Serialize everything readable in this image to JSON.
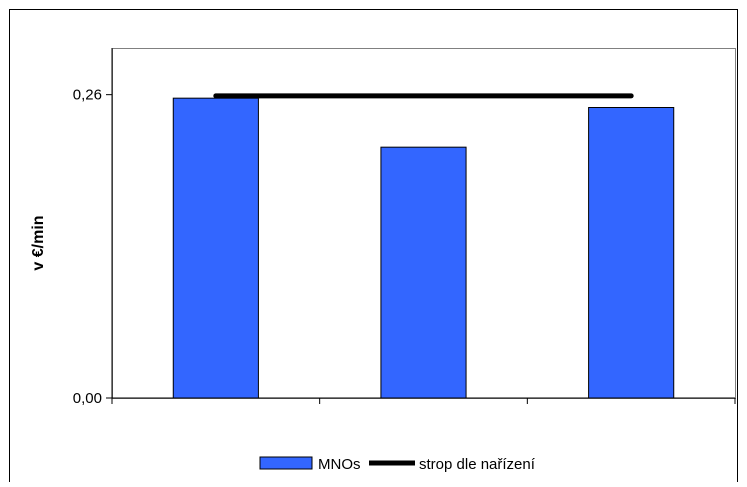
{
  "chart_data": {
    "type": "bar",
    "title": "",
    "xlabel": "",
    "ylabel": "v €/min",
    "ylim": [
      0,
      0.3
    ],
    "yticks": [
      {
        "value": 0.0,
        "label": "0,00"
      },
      {
        "value": 0.26,
        "label": "0,26"
      }
    ],
    "categories": [
      "",
      "",
      ""
    ],
    "series": [
      {
        "name": "MNOs",
        "type": "bar",
        "values": [
          0.257,
          0.215,
          0.249
        ],
        "color": "#3366ff"
      },
      {
        "name": "strop dle nařízení",
        "type": "line",
        "values": [
          0.259,
          0.259,
          0.259
        ],
        "color": "#000000"
      }
    ],
    "legend_position": "bottom-center",
    "grid": false
  }
}
